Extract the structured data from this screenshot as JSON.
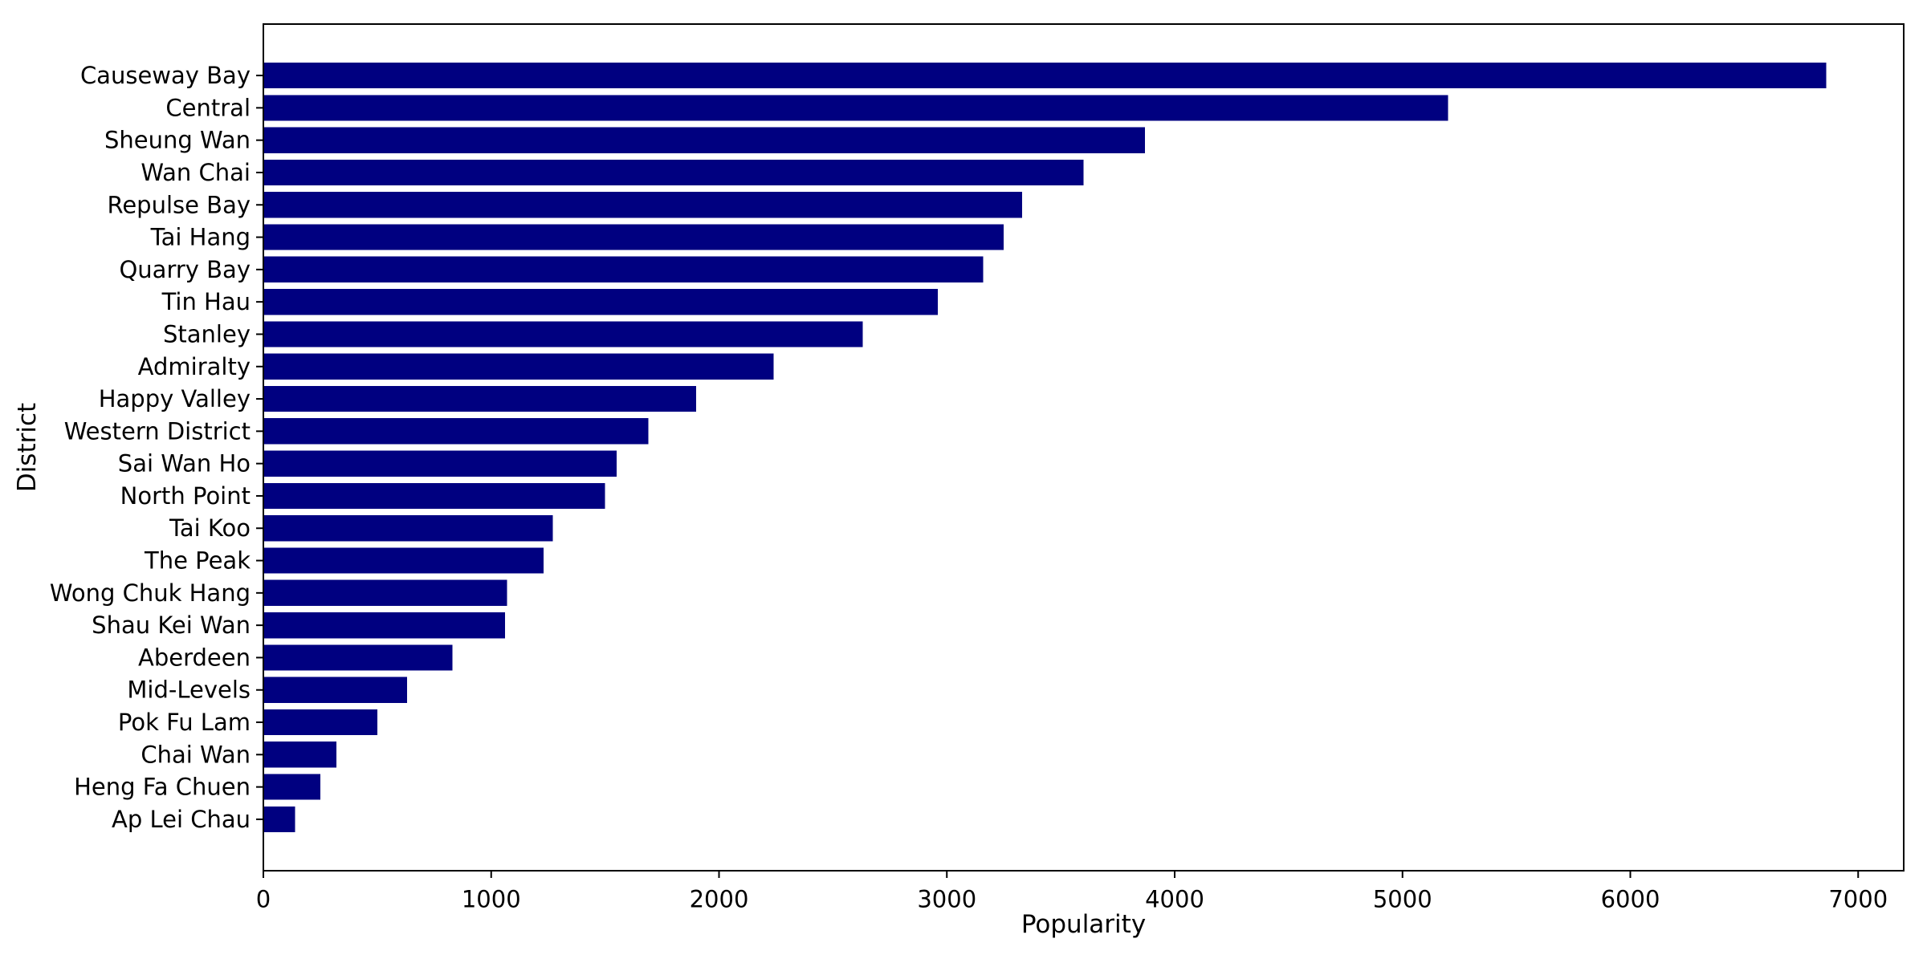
{
  "figure": {
    "background": "#ffffff",
    "spine_color": "#000000",
    "text_color": "#000000"
  },
  "chart_data": {
    "type": "bar",
    "orientation": "horizontal",
    "title": "",
    "xlabel": "Popularity",
    "ylabel": "District",
    "bar_color": "#000080",
    "grid": false,
    "legend_position": "none",
    "categories": [
      "Causeway Bay",
      "Central",
      "Sheung Wan",
      "Wan Chai",
      "Repulse Bay",
      "Tai Hang",
      "Quarry Bay",
      "Tin Hau",
      "Stanley",
      "Admiralty",
      "Happy Valley",
      "Western District",
      "Sai Wan Ho",
      "North Point",
      "Tai Koo",
      "The Peak",
      "Wong Chuk Hang",
      "Shau Kei Wan",
      "Aberdeen",
      "Mid-Levels",
      "Pok Fu Lam",
      "Chai Wan",
      "Heng Fa Chuen",
      "Ap Lei Chau"
    ],
    "values": [
      6860,
      5200,
      3870,
      3600,
      3330,
      3250,
      3160,
      2960,
      2630,
      2240,
      1900,
      1690,
      1550,
      1500,
      1270,
      1230,
      1070,
      1060,
      830,
      630,
      500,
      320,
      250,
      140
    ],
    "x_ticks": [
      0,
      1000,
      2000,
      3000,
      4000,
      5000,
      6000,
      7000
    ],
    "xlim": [
      0,
      7200
    ]
  }
}
